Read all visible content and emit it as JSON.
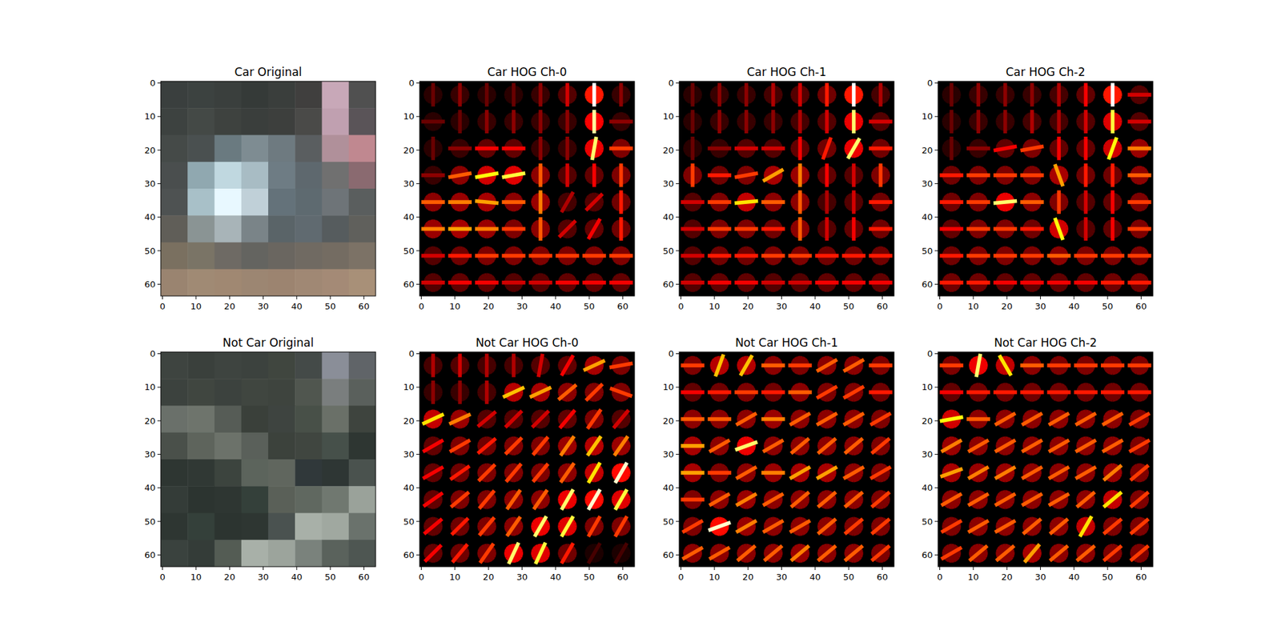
{
  "chart_data": [
    {
      "type": "image",
      "title": "Car Original",
      "xlim": [
        -0.5,
        63.5
      ],
      "ylim": [
        63.5,
        -0.5
      ],
      "xticks": [
        0,
        10,
        20,
        30,
        40,
        50,
        60
      ],
      "yticks": [
        0,
        10,
        20,
        30,
        40,
        50,
        60
      ],
      "pixels": [
        [
          "#3a3f3e",
          "#3c4240",
          "#3a3f3d",
          "#353a38",
          "#3a3e3c",
          "#403f3e",
          "#c8a8b8",
          "#505050"
        ],
        [
          "#3d4240",
          "#444946",
          "#3e423f",
          "#3a3e3c",
          "#3d3f3d",
          "#4a4a48",
          "#c0a0b0",
          "#5a5458"
        ],
        [
          "#454a48",
          "#4a5050",
          "#6a7a80",
          "#7e8c92",
          "#6e7a80",
          "#5a5e60",
          "#b0909a",
          "#c08890"
        ],
        [
          "#4a4e4e",
          "#90a8b0",
          "#c0d8e0",
          "#a8bcc4",
          "#6e7c84",
          "#5e686e",
          "#707070",
          "#8a6a70"
        ],
        [
          "#4e5252",
          "#a8c0c8",
          "#e8f8ff",
          "#c0d0d8",
          "#64727a",
          "#5e6a70",
          "#6e7478",
          "#5a5e5e"
        ],
        [
          "#605e58",
          "#8a9494",
          "#a8b4b8",
          "#7a8488",
          "#5a6468",
          "#606a70",
          "#565c5e",
          "#60605c"
        ],
        [
          "#7a7060",
          "#7a7466",
          "#6e6a64",
          "#646460",
          "#6a6660",
          "#706a62",
          "#746c62",
          "#7c7266"
        ],
        [
          "#9a8470",
          "#a08a74",
          "#a08872",
          "#9c8672",
          "#9c8470",
          "#a08874",
          "#a48a76",
          "#a89078"
        ]
      ]
    },
    {
      "type": "hog",
      "title": "Car HOG Ch-0",
      "xlim": [
        -0.5,
        63.5
      ],
      "ylim": [
        63.5,
        -0.5
      ],
      "xticks": [
        0,
        10,
        20,
        30,
        40,
        50,
        60
      ],
      "yticks": [
        0,
        10,
        20,
        30,
        40,
        50,
        60
      ],
      "magnitude": [
        [
          0.15,
          0.2,
          0.15,
          0.15,
          0.2,
          0.3,
          1.0,
          0.2
        ],
        [
          0.15,
          0.15,
          0.2,
          0.2,
          0.2,
          0.2,
          0.9,
          0.2
        ],
        [
          0.15,
          0.2,
          0.35,
          0.35,
          0.2,
          0.2,
          0.85,
          0.45
        ],
        [
          0.2,
          0.5,
          0.75,
          0.8,
          0.5,
          0.3,
          0.35,
          0.45
        ],
        [
          0.5,
          0.55,
          0.6,
          0.5,
          0.55,
          0.25,
          0.3,
          0.4
        ],
        [
          0.55,
          0.6,
          0.55,
          0.45,
          0.5,
          0.3,
          0.35,
          0.4
        ],
        [
          0.3,
          0.4,
          0.45,
          0.45,
          0.45,
          0.45,
          0.45,
          0.45
        ],
        [
          0.3,
          0.35,
          0.35,
          0.3,
          0.3,
          0.35,
          0.35,
          0.35
        ]
      ],
      "angle": [
        [
          90,
          90,
          90,
          90,
          90,
          90,
          90,
          90
        ],
        [
          0,
          90,
          90,
          90,
          90,
          90,
          90,
          0
        ],
        [
          90,
          0,
          0,
          0,
          90,
          90,
          80,
          0
        ],
        [
          0,
          10,
          10,
          10,
          90,
          90,
          90,
          90
        ],
        [
          0,
          0,
          -5,
          0,
          90,
          60,
          45,
          90
        ],
        [
          0,
          0,
          0,
          0,
          90,
          45,
          60,
          90
        ],
        [
          0,
          0,
          0,
          0,
          0,
          0,
          0,
          0
        ],
        [
          0,
          0,
          0,
          0,
          0,
          0,
          0,
          0
        ]
      ]
    },
    {
      "type": "hog",
      "title": "Car HOG Ch-1",
      "xlim": [
        -0.5,
        63.5
      ],
      "ylim": [
        63.5,
        -0.5
      ],
      "xticks": [
        0,
        10,
        20,
        30,
        40,
        50,
        60
      ],
      "yticks": [
        0,
        10,
        20,
        30,
        40,
        50,
        60
      ],
      "magnitude": [
        [
          0.15,
          0.2,
          0.2,
          0.25,
          0.3,
          0.4,
          1.0,
          0.25
        ],
        [
          0.15,
          0.2,
          0.2,
          0.2,
          0.25,
          0.3,
          0.85,
          0.3
        ],
        [
          0.15,
          0.2,
          0.3,
          0.3,
          0.35,
          0.4,
          0.85,
          0.4
        ],
        [
          0.45,
          0.4,
          0.45,
          0.6,
          0.55,
          0.35,
          0.3,
          0.45
        ],
        [
          0.3,
          0.45,
          0.7,
          0.5,
          0.5,
          0.25,
          0.3,
          0.4
        ],
        [
          0.3,
          0.45,
          0.45,
          0.4,
          0.5,
          0.3,
          0.35,
          0.4
        ],
        [
          0.3,
          0.4,
          0.4,
          0.45,
          0.45,
          0.4,
          0.4,
          0.4
        ],
        [
          0.3,
          0.35,
          0.35,
          0.3,
          0.3,
          0.35,
          0.35,
          0.35
        ]
      ],
      "angle": [
        [
          90,
          90,
          90,
          90,
          90,
          90,
          90,
          90
        ],
        [
          90,
          90,
          90,
          90,
          90,
          90,
          90,
          0
        ],
        [
          90,
          0,
          0,
          0,
          90,
          70,
          60,
          0
        ],
        [
          90,
          0,
          10,
          30,
          90,
          90,
          90,
          90
        ],
        [
          0,
          0,
          5,
          0,
          90,
          90,
          90,
          0
        ],
        [
          0,
          0,
          0,
          0,
          90,
          90,
          90,
          0
        ],
        [
          0,
          0,
          0,
          0,
          0,
          0,
          0,
          0
        ],
        [
          0,
          0,
          0,
          0,
          0,
          0,
          0,
          0
        ]
      ]
    },
    {
      "type": "hog",
      "title": "Car HOG Ch-2",
      "xlim": [
        -0.5,
        63.5
      ],
      "ylim": [
        63.5,
        -0.5
      ],
      "xticks": [
        0,
        10,
        20,
        30,
        40,
        50,
        60
      ],
      "yticks": [
        0,
        10,
        20,
        30,
        40,
        50,
        60
      ],
      "magnitude": [
        [
          0.15,
          0.2,
          0.2,
          0.2,
          0.25,
          0.35,
          1.0,
          0.3
        ],
        [
          0.15,
          0.2,
          0.2,
          0.25,
          0.25,
          0.3,
          0.8,
          0.3
        ],
        [
          0.15,
          0.2,
          0.35,
          0.45,
          0.35,
          0.35,
          0.75,
          0.55
        ],
        [
          0.4,
          0.45,
          0.45,
          0.45,
          0.6,
          0.4,
          0.4,
          0.5
        ],
        [
          0.4,
          0.45,
          0.85,
          0.5,
          0.45,
          0.3,
          0.35,
          0.45
        ],
        [
          0.35,
          0.45,
          0.45,
          0.4,
          0.75,
          0.3,
          0.35,
          0.45
        ],
        [
          0.4,
          0.45,
          0.45,
          0.45,
          0.5,
          0.45,
          0.45,
          0.45
        ],
        [
          0.4,
          0.4,
          0.35,
          0.35,
          0.35,
          0.35,
          0.4,
          0.4
        ]
      ],
      "angle": [
        [
          90,
          90,
          90,
          90,
          90,
          90,
          90,
          0
        ],
        [
          90,
          90,
          90,
          90,
          90,
          90,
          90,
          0
        ],
        [
          90,
          0,
          10,
          10,
          90,
          90,
          70,
          0
        ],
        [
          0,
          0,
          0,
          0,
          -70,
          90,
          90,
          0
        ],
        [
          0,
          0,
          5,
          0,
          90,
          90,
          90,
          0
        ],
        [
          0,
          0,
          0,
          0,
          -70,
          90,
          90,
          0
        ],
        [
          0,
          0,
          0,
          0,
          0,
          0,
          0,
          0
        ],
        [
          0,
          0,
          0,
          0,
          0,
          0,
          0,
          0
        ]
      ]
    },
    {
      "type": "image",
      "title": "Not Car Original",
      "xlim": [
        -0.5,
        63.5
      ],
      "ylim": [
        63.5,
        -0.5
      ],
      "xticks": [
        0,
        10,
        20,
        30,
        40,
        50,
        60
      ],
      "yticks": [
        0,
        10,
        20,
        30,
        40,
        50,
        60
      ],
      "pixels": [
        [
          "#3e4440",
          "#3a403c",
          "#3e4440",
          "#3c423e",
          "#40463f",
          "#444a48",
          "#8a8e98",
          "#606468"
        ],
        [
          "#3c423e",
          "#404640",
          "#3c423e",
          "#404640",
          "#3e443e",
          "#50564f",
          "#7a7e7e",
          "#5a605c"
        ],
        [
          "#6a706a",
          "#6e746c",
          "#565c56",
          "#3a403a",
          "#3e4440",
          "#485048",
          "#6a7068",
          "#3e443e"
        ],
        [
          "#4a504a",
          "#5e645c",
          "#6c726a",
          "#5a605a",
          "#3c423c",
          "#404640",
          "#46504a",
          "#2e3632"
        ],
        [
          "#2e3632",
          "#303834",
          "#3c443e",
          "#5c645c",
          "#60665e",
          "#30383a",
          "#2e3634",
          "#4a524e"
        ],
        [
          "#343c38",
          "#2c3430",
          "#2e3632",
          "#34403a",
          "#5a6058",
          "#606860",
          "#707870",
          "#9aa29a"
        ],
        [
          "#2e3632",
          "#34403a",
          "#2c3430",
          "#2e3632",
          "#4a5250",
          "#a8b0a8",
          "#a0a8a0",
          "#6a726c"
        ],
        [
          "#3a423e",
          "#343c38",
          "#545c54",
          "#a8b0a8",
          "#9ca49c",
          "#7a827c",
          "#5a625c",
          "#4e5652"
        ]
      ]
    },
    {
      "type": "hog",
      "title": "Not Car HOG Ch-0",
      "xlim": [
        -0.5,
        63.5
      ],
      "ylim": [
        63.5,
        -0.5
      ],
      "xticks": [
        0,
        10,
        20,
        30,
        40,
        50,
        60
      ],
      "yticks": [
        0,
        10,
        20,
        30,
        40,
        50,
        60
      ],
      "magnitude": [
        [
          0.25,
          0.3,
          0.25,
          0.25,
          0.3,
          0.35,
          0.6,
          0.45
        ],
        [
          0.2,
          0.2,
          0.25,
          0.65,
          0.6,
          0.5,
          0.45,
          0.45
        ],
        [
          0.7,
          0.55,
          0.3,
          0.3,
          0.3,
          0.35,
          0.45,
          0.3
        ],
        [
          0.35,
          0.45,
          0.4,
          0.45,
          0.45,
          0.55,
          0.65,
          0.55
        ],
        [
          0.35,
          0.4,
          0.45,
          0.45,
          0.45,
          0.5,
          0.7,
          0.95
        ],
        [
          0.35,
          0.45,
          0.45,
          0.5,
          0.5,
          0.85,
          0.95,
          0.8
        ],
        [
          0.35,
          0.4,
          0.45,
          0.5,
          0.85,
          0.8,
          0.45,
          0.45
        ],
        [
          0.35,
          0.4,
          0.45,
          0.85,
          0.8,
          0.4,
          0.1,
          0.1
        ]
      ],
      "angle": [
        [
          90,
          90,
          90,
          90,
          80,
          60,
          25,
          10
        ],
        [
          90,
          90,
          90,
          25,
          25,
          40,
          45,
          -20
        ],
        [
          25,
          25,
          40,
          45,
          45,
          50,
          55,
          50
        ],
        [
          30,
          30,
          40,
          45,
          50,
          55,
          55,
          55
        ],
        [
          30,
          35,
          45,
          50,
          50,
          55,
          60,
          60
        ],
        [
          35,
          40,
          50,
          55,
          55,
          60,
          60,
          60
        ],
        [
          40,
          45,
          50,
          55,
          60,
          60,
          60,
          60
        ],
        [
          45,
          50,
          55,
          65,
          65,
          60,
          60,
          60
        ]
      ]
    },
    {
      "type": "hog",
      "title": "Not Car HOG Ch-1",
      "xlim": [
        -0.5,
        63.5
      ],
      "ylim": [
        63.5,
        -0.5
      ],
      "xticks": [
        0,
        10,
        20,
        30,
        40,
        50,
        60
      ],
      "yticks": [
        0,
        10,
        20,
        30,
        40,
        50,
        60
      ],
      "magnitude": [
        [
          0.45,
          0.65,
          0.65,
          0.5,
          0.45,
          0.5,
          0.5,
          0.45
        ],
        [
          0.35,
          0.4,
          0.45,
          0.4,
          0.5,
          0.45,
          0.45,
          0.4
        ],
        [
          0.5,
          0.5,
          0.5,
          0.55,
          0.5,
          0.5,
          0.5,
          0.45
        ],
        [
          0.6,
          0.5,
          0.85,
          0.5,
          0.5,
          0.5,
          0.5,
          0.45
        ],
        [
          0.6,
          0.45,
          0.5,
          0.55,
          0.6,
          0.6,
          0.5,
          0.45
        ],
        [
          0.45,
          0.5,
          0.55,
          0.5,
          0.5,
          0.5,
          0.5,
          0.45
        ],
        [
          0.45,
          0.95,
          0.55,
          0.5,
          0.5,
          0.5,
          0.45,
          0.45
        ],
        [
          0.5,
          0.5,
          0.5,
          0.5,
          0.55,
          0.5,
          0.5,
          0.45
        ]
      ],
      "angle": [
        [
          0,
          70,
          60,
          0,
          0,
          30,
          30,
          0
        ],
        [
          0,
          0,
          0,
          0,
          0,
          30,
          30,
          0
        ],
        [
          0,
          0,
          30,
          0,
          30,
          30,
          30,
          30
        ],
        [
          0,
          30,
          20,
          30,
          40,
          40,
          40,
          40
        ],
        [
          0,
          0,
          30,
          0,
          30,
          30,
          30,
          30
        ],
        [
          0,
          30,
          30,
          30,
          40,
          40,
          40,
          40
        ],
        [
          30,
          20,
          30,
          30,
          30,
          40,
          40,
          40
        ],
        [
          30,
          30,
          40,
          40,
          40,
          40,
          40,
          40
        ]
      ]
    },
    {
      "type": "hog",
      "title": "Not Car HOG Ch-2",
      "xlim": [
        -0.5,
        63.5
      ],
      "ylim": [
        63.5,
        -0.5
      ],
      "xticks": [
        0,
        10,
        20,
        30,
        40,
        50,
        60
      ],
      "yticks": [
        0,
        10,
        20,
        30,
        40,
        50,
        60
      ],
      "magnitude": [
        [
          0.45,
          0.85,
          0.7,
          0.5,
          0.45,
          0.45,
          0.45,
          0.45
        ],
        [
          0.35,
          0.4,
          0.4,
          0.4,
          0.4,
          0.4,
          0.4,
          0.4
        ],
        [
          0.75,
          0.5,
          0.5,
          0.5,
          0.5,
          0.5,
          0.5,
          0.45
        ],
        [
          0.55,
          0.5,
          0.5,
          0.5,
          0.5,
          0.5,
          0.5,
          0.45
        ],
        [
          0.6,
          0.55,
          0.55,
          0.5,
          0.5,
          0.5,
          0.55,
          0.45
        ],
        [
          0.5,
          0.5,
          0.5,
          0.5,
          0.5,
          0.5,
          0.7,
          0.45
        ],
        [
          0.45,
          0.5,
          0.5,
          0.5,
          0.5,
          0.7,
          0.45,
          0.45
        ],
        [
          0.45,
          0.5,
          0.5,
          0.6,
          0.5,
          0.5,
          0.45,
          0.45
        ]
      ],
      "angle": [
        [
          0,
          80,
          -60,
          0,
          0,
          0,
          0,
          0
        ],
        [
          0,
          0,
          0,
          0,
          0,
          0,
          0,
          0
        ],
        [
          10,
          0,
          30,
          30,
          30,
          30,
          30,
          30
        ],
        [
          30,
          30,
          30,
          30,
          30,
          30,
          30,
          30
        ],
        [
          20,
          30,
          30,
          30,
          30,
          30,
          40,
          40
        ],
        [
          30,
          30,
          30,
          30,
          30,
          40,
          40,
          40
        ],
        [
          30,
          30,
          30,
          40,
          40,
          60,
          40,
          40
        ],
        [
          30,
          40,
          40,
          50,
          40,
          40,
          40,
          40
        ]
      ]
    }
  ]
}
